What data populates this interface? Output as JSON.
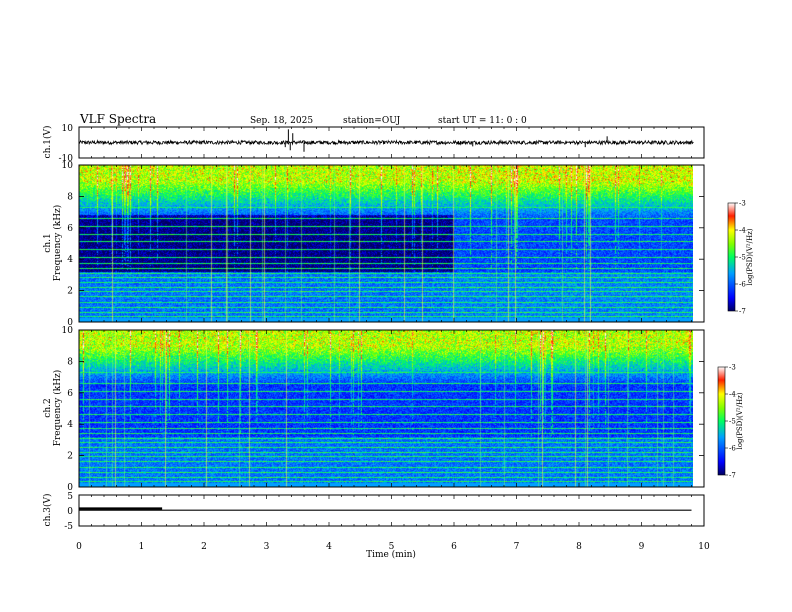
{
  "header": {
    "title": "VLF Spectra",
    "date": "Sep. 18, 2025",
    "station": "station=OUJ",
    "start": "start  UT =   11: 0  : 0"
  },
  "chart_data": [
    {
      "type": "line",
      "name": "ch1-waveform",
      "ylabel": "ch.1(V)",
      "ylim": [
        -10,
        10
      ],
      "yticks": [
        "10",
        "-10"
      ],
      "baseline": 0,
      "noise_amplitude": 1.2,
      "spikes": [
        {
          "t": 3.35,
          "v": 8.5
        },
        {
          "t": 3.38,
          "v": -5
        },
        {
          "t": 3.6,
          "v": -6
        },
        {
          "t": 3.42,
          "v": 6
        },
        {
          "t": 3.3,
          "v": -3
        },
        {
          "t": 8.1,
          "v": -3
        },
        {
          "t": 8.45,
          "v": 4
        },
        {
          "t": 6.3,
          "v": -2.5
        }
      ]
    },
    {
      "type": "heatmap",
      "name": "ch1-spectrogram",
      "ylabel_top": "ch.1",
      "ylabel": "Frequency (kHz)",
      "ylim": [
        0,
        10
      ],
      "yticks": [
        "0",
        "2",
        "4",
        "6",
        "8",
        "10"
      ],
      "colorbar": {
        "label": "log(PSD)(V²/Hz)",
        "range": [
          -7,
          -3
        ],
        "ticks": [
          "-3",
          "-4",
          "-5",
          "-6",
          "-7"
        ]
      },
      "description_levels": {
        "high_band_kHz": [
          7,
          10
        ],
        "high_level": -4.5,
        "mid_level": -6,
        "low_level": -6.8
      },
      "regime_change_min": 6.0
    },
    {
      "type": "heatmap",
      "name": "ch2-spectrogram",
      "ylabel_top": "ch.2",
      "ylabel": "Frequency (kHz)",
      "ylim": [
        0,
        10
      ],
      "yticks": [
        "0",
        "2",
        "4",
        "6",
        "8",
        "10"
      ],
      "colorbar": {
        "label": "log(PSD)(V²/Hz)",
        "range": [
          -7,
          -3
        ],
        "ticks": [
          "-3",
          "-4",
          "-5",
          "-6",
          "-7"
        ]
      }
    },
    {
      "type": "line",
      "name": "ch3-signal",
      "ylabel": "ch.3(V)",
      "ylim": [
        -5,
        5
      ],
      "yticks": [
        "5",
        "0",
        "-5"
      ],
      "series": [
        {
          "name": "thick-segment",
          "x": [
            0,
            1.33
          ],
          "y": [
            0.6,
            0.6
          ]
        },
        {
          "name": "trace",
          "x": [
            0,
            9.8
          ],
          "y": [
            0.1,
            0.1
          ]
        }
      ],
      "xlabel": "Time (min)",
      "xlim": [
        0,
        10
      ],
      "xticks": [
        "0",
        "1",
        "2",
        "3",
        "4",
        "5",
        "6",
        "7",
        "8",
        "9",
        "10"
      ]
    }
  ]
}
